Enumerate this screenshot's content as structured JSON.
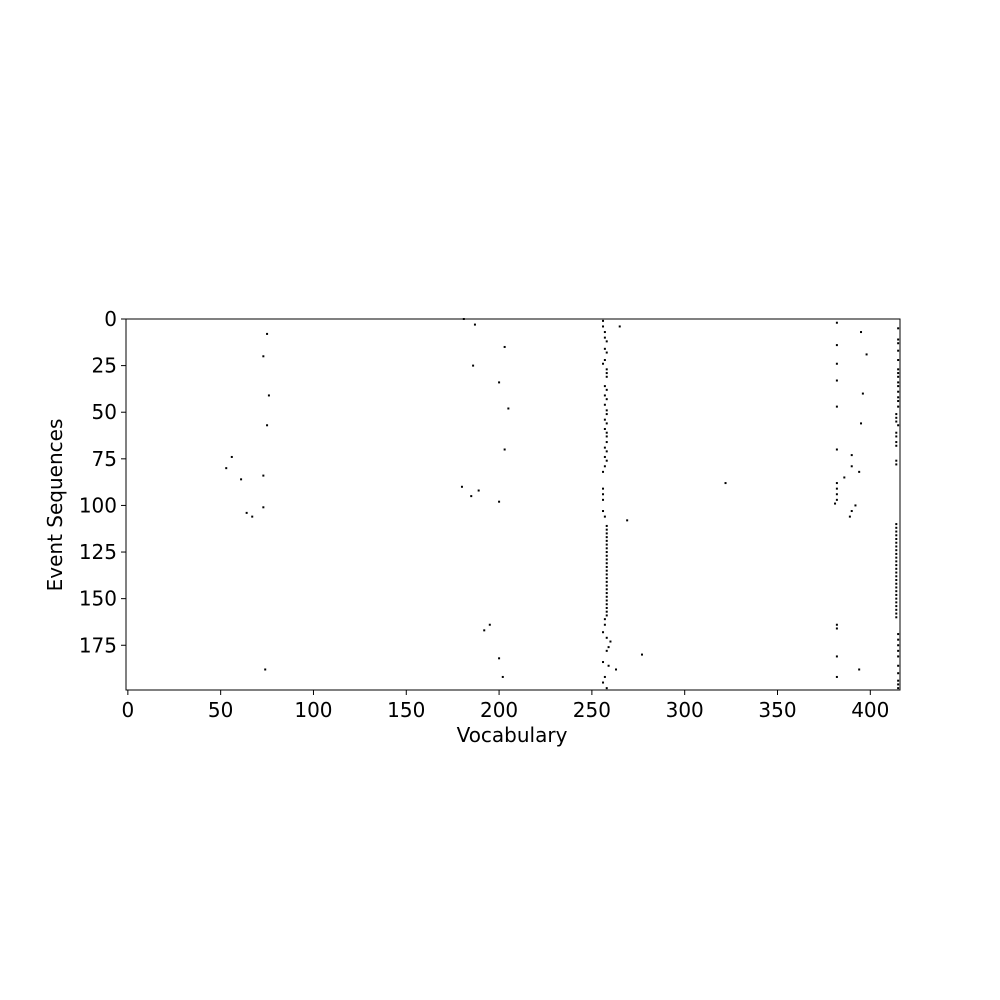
{
  "chart_data": {
    "type": "scatter",
    "title": "",
    "xlabel": "Vocabulary",
    "ylabel": "Event Sequences",
    "xlim": [
      -1,
      416
    ],
    "ylim": [
      199,
      0
    ],
    "y_inverted": true,
    "grid": false,
    "marker_color": "#000000",
    "x_ticks": [
      0,
      50,
      100,
      150,
      200,
      250,
      300,
      350,
      400
    ],
    "y_ticks": [
      0,
      25,
      50,
      75,
      100,
      125,
      150,
      175
    ],
    "points": [
      [
        181,
        0
      ],
      [
        187,
        3
      ],
      [
        265,
        4
      ],
      [
        75,
        8
      ],
      [
        203,
        15
      ],
      [
        73,
        20
      ],
      [
        186,
        25
      ],
      [
        200,
        34
      ],
      [
        76,
        41
      ],
      [
        205,
        48
      ],
      [
        75,
        57
      ],
      [
        203,
        70
      ],
      [
        56,
        74
      ],
      [
        53,
        80
      ],
      [
        61,
        86
      ],
      [
        73,
        84
      ],
      [
        180,
        90
      ],
      [
        185,
        95
      ],
      [
        189,
        92
      ],
      [
        200,
        98
      ],
      [
        64,
        104
      ],
      [
        67,
        106
      ],
      [
        73,
        101
      ],
      [
        269,
        108
      ],
      [
        322,
        88
      ],
      [
        277,
        180
      ],
      [
        263,
        188
      ],
      [
        200,
        182
      ],
      [
        202,
        192
      ],
      [
        74,
        188
      ],
      [
        192,
        167
      ],
      [
        195,
        164
      ],
      [
        256,
        1
      ],
      [
        256,
        4
      ],
      [
        257,
        7
      ],
      [
        257,
        10
      ],
      [
        258,
        12
      ],
      [
        257,
        16
      ],
      [
        258,
        18
      ],
      [
        257,
        22
      ],
      [
        256,
        24
      ],
      [
        258,
        27
      ],
      [
        258,
        29
      ],
      [
        258,
        31
      ],
      [
        257,
        36
      ],
      [
        258,
        38
      ],
      [
        257,
        41
      ],
      [
        258,
        43
      ],
      [
        257,
        46
      ],
      [
        258,
        49
      ],
      [
        258,
        51
      ],
      [
        257,
        54
      ],
      [
        258,
        56
      ],
      [
        257,
        59
      ],
      [
        258,
        61
      ],
      [
        258,
        63
      ],
      [
        258,
        66
      ],
      [
        257,
        69
      ],
      [
        258,
        71
      ],
      [
        257,
        74
      ],
      [
        258,
        76
      ],
      [
        257,
        79
      ],
      [
        256,
        82
      ],
      [
        256,
        91
      ],
      [
        256,
        94
      ],
      [
        256,
        97
      ],
      [
        256,
        103
      ],
      [
        257,
        106
      ],
      [
        258,
        111
      ],
      [
        258,
        113
      ],
      [
        258,
        115
      ],
      [
        258,
        117
      ],
      [
        258,
        119
      ],
      [
        258,
        121
      ],
      [
        258,
        123
      ],
      [
        258,
        125
      ],
      [
        258,
        127
      ],
      [
        258,
        129
      ],
      [
        258,
        131
      ],
      [
        258,
        133
      ],
      [
        258,
        135
      ],
      [
        258,
        137
      ],
      [
        258,
        139
      ],
      [
        258,
        141
      ],
      [
        258,
        143
      ],
      [
        258,
        145
      ],
      [
        258,
        147
      ],
      [
        258,
        149
      ],
      [
        258,
        151
      ],
      [
        258,
        153
      ],
      [
        258,
        155
      ],
      [
        258,
        157
      ],
      [
        258,
        159
      ],
      [
        257,
        161
      ],
      [
        257,
        164
      ],
      [
        256,
        168
      ],
      [
        258,
        171
      ],
      [
        260,
        173
      ],
      [
        259,
        176
      ],
      [
        258,
        178
      ],
      [
        256,
        184
      ],
      [
        259,
        186
      ],
      [
        257,
        192
      ],
      [
        256,
        195
      ],
      [
        258,
        198
      ],
      [
        382,
        2
      ],
      [
        382,
        14
      ],
      [
        395,
        7
      ],
      [
        398,
        19
      ],
      [
        382,
        24
      ],
      [
        382,
        33
      ],
      [
        396,
        40
      ],
      [
        382,
        47
      ],
      [
        395,
        56
      ],
      [
        382,
        70
      ],
      [
        390,
        73
      ],
      [
        390,
        79
      ],
      [
        394,
        82
      ],
      [
        386,
        85
      ],
      [
        382,
        88
      ],
      [
        382,
        91
      ],
      [
        382,
        94
      ],
      [
        382,
        97
      ],
      [
        381,
        99
      ],
      [
        392,
        100
      ],
      [
        390,
        103
      ],
      [
        389,
        106
      ],
      [
        382,
        164
      ],
      [
        382,
        166
      ],
      [
        382,
        181
      ],
      [
        394,
        188
      ],
      [
        382,
        192
      ],
      [
        415,
        5
      ],
      [
        415,
        11
      ],
      [
        415,
        13
      ],
      [
        415,
        17
      ],
      [
        415,
        22
      ],
      [
        415,
        27
      ],
      [
        415,
        29
      ],
      [
        415,
        31
      ],
      [
        415,
        34
      ],
      [
        415,
        36
      ],
      [
        415,
        39
      ],
      [
        415,
        42
      ],
      [
        415,
        44
      ],
      [
        415,
        47
      ],
      [
        414,
        51
      ],
      [
        414,
        53
      ],
      [
        414,
        55
      ],
      [
        415,
        57
      ],
      [
        414,
        61
      ],
      [
        414,
        63
      ],
      [
        414,
        66
      ],
      [
        414,
        68
      ],
      [
        414,
        76
      ],
      [
        414,
        78
      ],
      [
        414,
        110
      ],
      [
        414,
        112
      ],
      [
        414,
        114
      ],
      [
        414,
        116
      ],
      [
        414,
        118
      ],
      [
        414,
        120
      ],
      [
        414,
        122
      ],
      [
        414,
        124
      ],
      [
        414,
        126
      ],
      [
        414,
        128
      ],
      [
        414,
        130
      ],
      [
        414,
        132
      ],
      [
        414,
        134
      ],
      [
        414,
        136
      ],
      [
        414,
        138
      ],
      [
        414,
        140
      ],
      [
        414,
        142
      ],
      [
        414,
        144
      ],
      [
        414,
        146
      ],
      [
        414,
        148
      ],
      [
        414,
        150
      ],
      [
        414,
        152
      ],
      [
        414,
        154
      ],
      [
        414,
        156
      ],
      [
        414,
        158
      ],
      [
        414,
        160
      ],
      [
        415,
        169
      ],
      [
        415,
        172
      ],
      [
        415,
        175
      ],
      [
        415,
        178
      ],
      [
        415,
        181
      ],
      [
        415,
        186
      ],
      [
        415,
        190
      ],
      [
        415,
        194
      ],
      [
        415,
        196
      ],
      [
        415,
        198
      ]
    ]
  }
}
